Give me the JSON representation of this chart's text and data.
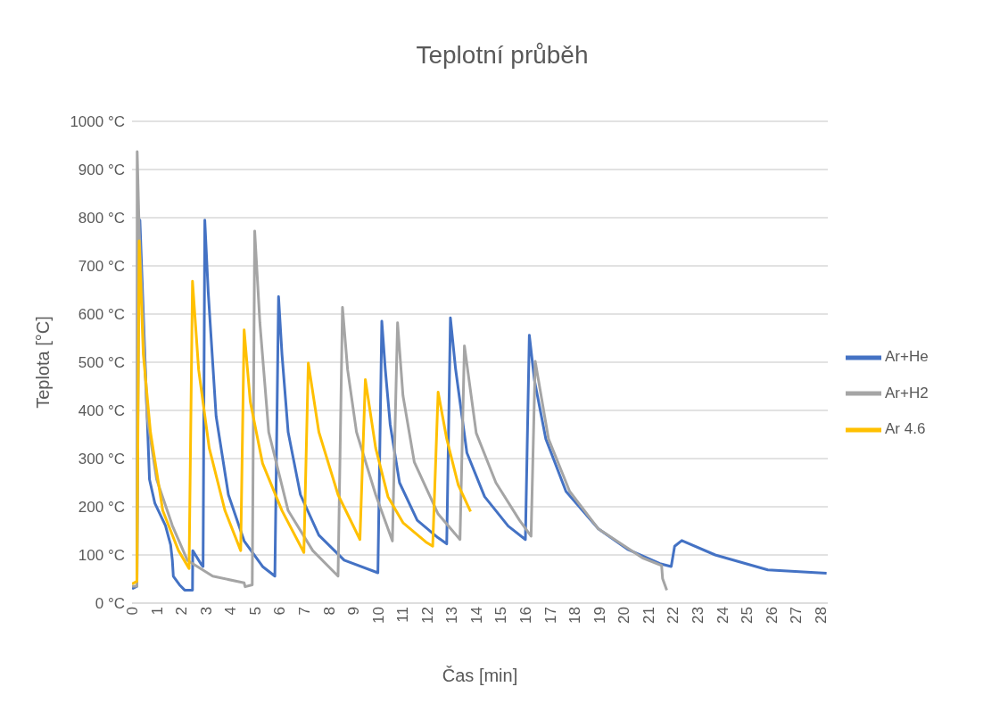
{
  "chart_data": {
    "type": "line",
    "title": "Teplotní průběh",
    "xlabel": "Čas [min]",
    "ylabel": "Teplota [°C]",
    "xlim": [
      0,
      28.3
    ],
    "xticks": [
      0,
      1,
      2,
      3,
      4,
      5,
      6,
      7,
      8,
      9,
      10,
      11,
      12,
      13,
      14,
      15,
      16,
      17,
      18,
      19,
      20,
      21,
      22,
      23,
      24,
      25,
      26,
      27,
      28
    ],
    "ylim": [
      0,
      1000
    ],
    "yticks": [
      {
        "value": 0,
        "label": "0 °C"
      },
      {
        "value": 100,
        "label": "100 °C"
      },
      {
        "value": 200,
        "label": "200 °C"
      },
      {
        "value": 300,
        "label": "300 °C"
      },
      {
        "value": 400,
        "label": "400 °C"
      },
      {
        "value": 500,
        "label": "500 °C"
      },
      {
        "value": 600,
        "label": "600 °C"
      },
      {
        "value": 700,
        "label": "700 °C"
      },
      {
        "value": 800,
        "label": "800 °C"
      },
      {
        "value": 900,
        "label": "900 °C"
      },
      {
        "value": 1000,
        "label": "1000 °C"
      }
    ],
    "grid": "y",
    "legend": "right",
    "marker": "none",
    "line_style": "solid",
    "series": [
      {
        "name": "Ar+He",
        "color": "#4472c4",
        "x": [
          0,
          0.2,
          0.28,
          0.32,
          0.71,
          0.93,
          1.36,
          1.57,
          1.64,
          1.68,
          1.93,
          2.14,
          2.46,
          2.47,
          2.82,
          2.89,
          2.96,
          3.1,
          3.42,
          3.92,
          4.56,
          5.31,
          5.81,
          5.96,
          6.1,
          6.35,
          6.85,
          7.6,
          8.63,
          10.0,
          10.16,
          10.3,
          10.5,
          10.88,
          11.6,
          12.44,
          12.8,
          12.95,
          13.16,
          13.62,
          14.34,
          15.3,
          16.0,
          16.16,
          16.37,
          16.83,
          17.65,
          18.97,
          20.15,
          21.47,
          21.93,
          22.07,
          22.36,
          23.72,
          25.86,
          28.25
        ],
        "values": [
          30,
          35,
          790,
          795,
          257,
          207,
          161,
          121,
          89,
          56,
          38,
          27,
          27,
          109,
          80,
          76,
          795,
          645,
          388,
          225,
          129,
          76,
          56,
          636,
          516,
          355,
          225,
          141,
          89,
          63,
          585,
          486,
          371,
          250,
          172,
          136,
          123,
          592,
          486,
          312,
          221,
          160,
          132,
          556,
          462,
          341,
          232,
          154,
          112,
          82,
          76,
          118,
          130,
          100,
          69,
          62
        ]
      },
      {
        "name": "Ar+H2",
        "color": "#a5a5a5",
        "x": [
          0,
          0.2,
          0.21,
          0.29,
          0.61,
          1.0,
          1.64,
          2.25,
          3.28,
          4.56,
          4.6,
          4.89,
          4.99,
          5.2,
          5.56,
          6.35,
          7.35,
          8.38,
          8.56,
          8.77,
          9.13,
          9.91,
          10.59,
          10.8,
          11.02,
          11.48,
          12.45,
          13.34,
          13.52,
          14.0,
          14.8,
          15.76,
          16.23,
          16.4,
          16.94,
          17.8,
          18.97,
          20.76,
          21.54,
          21.58,
          21.75
        ],
        "values": [
          35,
          35,
          937,
          775,
          388,
          257,
          161,
          89,
          56,
          42,
          34,
          38,
          772,
          582,
          355,
          192,
          109,
          56,
          614,
          484,
          355,
          225,
          129,
          582,
          431,
          293,
          185,
          132,
          534,
          353,
          250,
          172,
          139,
          502,
          341,
          232,
          154,
          94,
          78,
          51,
          27
        ]
      },
      {
        "name": "Ar 4.6",
        "color": "#ffc000",
        "x": [
          0,
          0.2,
          0.29,
          0.46,
          0.75,
          1.25,
          1.89,
          2.32,
          2.46,
          2.71,
          3.14,
          3.78,
          4.42,
          4.56,
          4.81,
          5.31,
          6.1,
          6.99,
          7.17,
          7.6,
          8.38,
          9.27,
          9.49,
          9.91,
          10.41,
          11.02,
          11.95,
          12.23,
          12.45,
          12.8,
          13.27,
          13.77
        ],
        "values": [
          40,
          45,
          752,
          516,
          355,
          192,
          109,
          72,
          668,
          484,
          322,
          192,
          109,
          567,
          418,
          290,
          192,
          105,
          498,
          355,
          225,
          132,
          464,
          322,
          221,
          167,
          127,
          118,
          438,
          341,
          245,
          190
        ]
      }
    ]
  }
}
